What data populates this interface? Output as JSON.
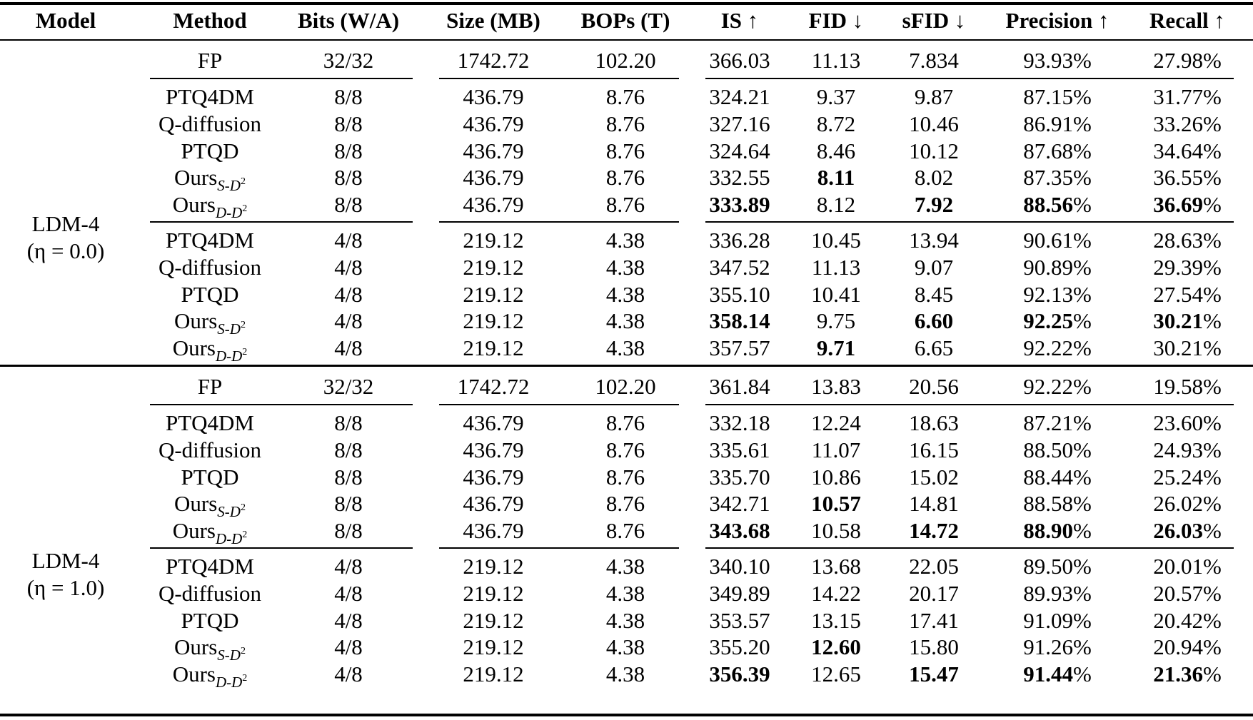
{
  "table": {
    "headers": [
      "Model",
      "Method",
      "Bits (W/A)",
      "Size (MB)",
      "BOPs (T)",
      "IS ↑",
      "FID ↓",
      "sFID ↓",
      "Precision ↑",
      "Recall ↑"
    ],
    "groups": [
      {
        "model": "LDM-4",
        "model_sub": "(η = 0.0)",
        "fp": {
          "method": "FP",
          "bits": "32/32",
          "size": "1742.72",
          "bops": "102.20",
          "is": "366.03",
          "fid": "11.13",
          "sfid": "7.834",
          "precision": "93.93%",
          "recall": "27.98%"
        },
        "blocks": [
          [
            {
              "method": "PTQ4DM",
              "sub": "",
              "bits": "8/8",
              "size": "436.79",
              "bops": "8.76",
              "is": "324.21",
              "fid": "9.37",
              "sfid": "9.87",
              "precision": "87.15%",
              "recall": "31.77%",
              "bold": []
            },
            {
              "method": "Q-diffusion",
              "sub": "",
              "bits": "8/8",
              "size": "436.79",
              "bops": "8.76",
              "is": "327.16",
              "fid": "8.72",
              "sfid": "10.46",
              "precision": "86.91%",
              "recall": "33.26%",
              "bold": []
            },
            {
              "method": "PTQD",
              "sub": "",
              "bits": "8/8",
              "size": "436.79",
              "bops": "8.76",
              "is": "324.64",
              "fid": "8.46",
              "sfid": "10.12",
              "precision": "87.68%",
              "recall": "34.64%",
              "bold": []
            },
            {
              "method": "Ours",
              "sub": "S-D",
              "bits": "8/8",
              "size": "436.79",
              "bops": "8.76",
              "is": "332.55",
              "fid": "8.11",
              "sfid": "8.02",
              "precision": "87.35%",
              "recall": "36.55%",
              "bold": [
                "fid"
              ]
            },
            {
              "method": "Ours",
              "sub": "D-D",
              "bits": "8/8",
              "size": "436.79",
              "bops": "8.76",
              "is": "333.89",
              "fid": "8.12",
              "sfid": "7.92",
              "precision": "88.56%",
              "recall": "36.69%",
              "bold": [
                "is",
                "sfid",
                "precision",
                "recall"
              ]
            }
          ],
          [
            {
              "method": "PTQ4DM",
              "sub": "",
              "bits": "4/8",
              "size": "219.12",
              "bops": "4.38",
              "is": "336.28",
              "fid": "10.45",
              "sfid": "13.94",
              "precision": "90.61%",
              "recall": "28.63%",
              "bold": []
            },
            {
              "method": "Q-diffusion",
              "sub": "",
              "bits": "4/8",
              "size": "219.12",
              "bops": "4.38",
              "is": "347.52",
              "fid": "11.13",
              "sfid": "9.07",
              "precision": "90.89%",
              "recall": "29.39%",
              "bold": []
            },
            {
              "method": "PTQD",
              "sub": "",
              "bits": "4/8",
              "size": "219.12",
              "bops": "4.38",
              "is": "355.10",
              "fid": "10.41",
              "sfid": "8.45",
              "precision": "92.13%",
              "recall": "27.54%",
              "bold": []
            },
            {
              "method": "Ours",
              "sub": "S-D",
              "bits": "4/8",
              "size": "219.12",
              "bops": "4.38",
              "is": "358.14",
              "fid": "9.75",
              "sfid": "6.60",
              "precision": "92.25%",
              "recall": "30.21%",
              "bold": [
                "is",
                "sfid",
                "precision",
                "recall"
              ]
            },
            {
              "method": "Ours",
              "sub": "D-D",
              "bits": "4/8",
              "size": "219.12",
              "bops": "4.38",
              "is": "357.57",
              "fid": "9.71",
              "sfid": "6.65",
              "precision": "92.22%",
              "recall": "30.21%",
              "bold": [
                "fid"
              ]
            }
          ]
        ]
      },
      {
        "model": "LDM-4",
        "model_sub": "(η = 1.0)",
        "fp": {
          "method": "FP",
          "bits": "32/32",
          "size": "1742.72",
          "bops": "102.20",
          "is": "361.84",
          "fid": "13.83",
          "sfid": "20.56",
          "precision": "92.22%",
          "recall": "19.58%"
        },
        "blocks": [
          [
            {
              "method": "PTQ4DM",
              "sub": "",
              "bits": "8/8",
              "size": "436.79",
              "bops": "8.76",
              "is": "332.18",
              "fid": "12.24",
              "sfid": "18.63",
              "precision": "87.21%",
              "recall": "23.60%",
              "bold": []
            },
            {
              "method": "Q-diffusion",
              "sub": "",
              "bits": "8/8",
              "size": "436.79",
              "bops": "8.76",
              "is": "335.61",
              "fid": "11.07",
              "sfid": "16.15",
              "precision": "88.50%",
              "recall": "24.93%",
              "bold": []
            },
            {
              "method": "PTQD",
              "sub": "",
              "bits": "8/8",
              "size": "436.79",
              "bops": "8.76",
              "is": "335.70",
              "fid": "10.86",
              "sfid": "15.02",
              "precision": "88.44%",
              "recall": "25.24%",
              "bold": []
            },
            {
              "method": "Ours",
              "sub": "S-D",
              "bits": "8/8",
              "size": "436.79",
              "bops": "8.76",
              "is": "342.71",
              "fid": "10.57",
              "sfid": "14.81",
              "precision": "88.58%",
              "recall": "26.02%",
              "bold": [
                "fid"
              ]
            },
            {
              "method": "Ours",
              "sub": "D-D",
              "bits": "8/8",
              "size": "436.79",
              "bops": "8.76",
              "is": "343.68",
              "fid": "10.58",
              "sfid": "14.72",
              "precision": "88.90%",
              "recall": "26.03%",
              "bold": [
                "is",
                "sfid",
                "precision",
                "recall"
              ]
            }
          ],
          [
            {
              "method": "PTQ4DM",
              "sub": "",
              "bits": "4/8",
              "size": "219.12",
              "bops": "4.38",
              "is": "340.10",
              "fid": "13.68",
              "sfid": "22.05",
              "precision": "89.50%",
              "recall": "20.01%",
              "bold": []
            },
            {
              "method": "Q-diffusion",
              "sub": "",
              "bits": "4/8",
              "size": "219.12",
              "bops": "4.38",
              "is": "349.89",
              "fid": "14.22",
              "sfid": "20.17",
              "precision": "89.93%",
              "recall": "20.57%",
              "bold": []
            },
            {
              "method": "PTQD",
              "sub": "",
              "bits": "4/8",
              "size": "219.12",
              "bops": "4.38",
              "is": "353.57",
              "fid": "13.15",
              "sfid": "17.41",
              "precision": "91.09%",
              "recall": "20.42%",
              "bold": []
            },
            {
              "method": "Ours",
              "sub": "S-D",
              "bits": "4/8",
              "size": "219.12",
              "bops": "4.38",
              "is": "355.20",
              "fid": "12.60",
              "sfid": "15.80",
              "precision": "91.26%",
              "recall": "20.94%",
              "bold": [
                "fid"
              ]
            },
            {
              "method": "Ours",
              "sub": "D-D",
              "bits": "4/8",
              "size": "219.12",
              "bops": "4.38",
              "is": "356.39",
              "fid": "12.65",
              "sfid": "15.47",
              "precision": "91.44%",
              "recall": "21.36%",
              "bold": [
                "is",
                "sfid",
                "precision",
                "recall"
              ]
            }
          ]
        ]
      }
    ],
    "sub_sup": "2"
  }
}
